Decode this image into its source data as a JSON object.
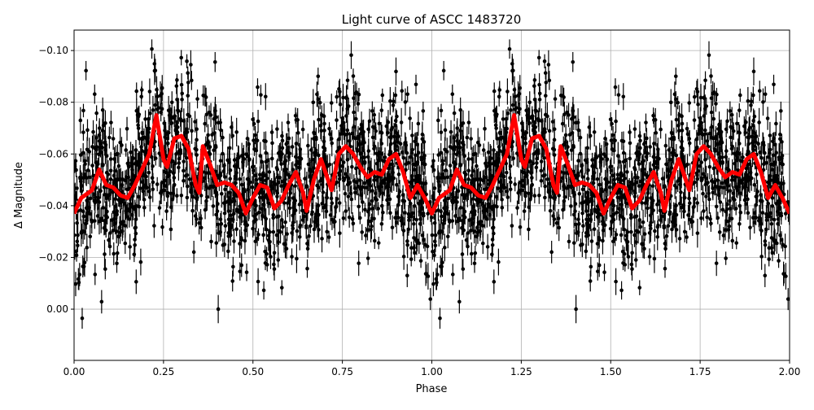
{
  "chart_data": {
    "type": "scatter",
    "title": "Light curve of ASCC 1483720",
    "xlabel": "Phase",
    "ylabel": "Δ Magnitude",
    "xlim": [
      0,
      2
    ],
    "ylim": [
      0.0198,
      -0.1079
    ],
    "y_inverted": true,
    "grid": true,
    "x_ticks": [
      "0.00",
      "0.25",
      "0.50",
      "0.75",
      "1.00",
      "1.25",
      "1.50",
      "1.75",
      "2.00"
    ],
    "y_ticks": [
      "−0.10",
      "−0.08",
      "−0.06",
      "−0.04",
      "−0.02",
      "0.00"
    ],
    "x_tick_values": [
      0,
      0.25,
      0.5,
      0.75,
      1,
      1.25,
      1.5,
      1.75,
      2
    ],
    "y_tick_values": [
      -0.1,
      -0.08,
      -0.06,
      -0.04,
      -0.02,
      0.0
    ],
    "points_style": {
      "color": "#000000",
      "marker": "dot with vertical error bars",
      "scatter_std": 0.018,
      "typical_error": 0.004
    },
    "model_curve": {
      "color": "#ff0000",
      "period_repeat": 1,
      "phase": [
        0.0,
        0.02,
        0.05,
        0.07,
        0.09,
        0.11,
        0.13,
        0.15,
        0.17,
        0.19,
        0.21,
        0.23,
        0.25,
        0.26,
        0.28,
        0.3,
        0.32,
        0.34,
        0.35,
        0.36,
        0.38,
        0.4,
        0.42,
        0.44,
        0.46,
        0.48,
        0.5,
        0.52,
        0.54,
        0.56,
        0.58,
        0.6,
        0.62,
        0.64,
        0.65,
        0.67,
        0.69,
        0.71,
        0.72,
        0.74,
        0.76,
        0.78,
        0.8,
        0.82,
        0.84,
        0.86,
        0.88,
        0.9,
        0.92,
        0.94,
        0.96,
        0.98,
        1.0
      ],
      "magnitude": [
        -0.037,
        -0.043,
        -0.046,
        -0.054,
        -0.048,
        -0.047,
        -0.044,
        -0.043,
        -0.048,
        -0.054,
        -0.06,
        -0.075,
        -0.058,
        -0.055,
        -0.066,
        -0.067,
        -0.062,
        -0.048,
        -0.045,
        -0.063,
        -0.056,
        -0.048,
        -0.049,
        -0.048,
        -0.045,
        -0.037,
        -0.043,
        -0.048,
        -0.047,
        -0.039,
        -0.042,
        -0.048,
        -0.053,
        -0.045,
        -0.038,
        -0.05,
        -0.058,
        -0.05,
        -0.046,
        -0.06,
        -0.063,
        -0.06,
        -0.055,
        -0.051,
        -0.053,
        -0.052,
        -0.058,
        -0.06,
        -0.053,
        -0.043,
        -0.048,
        -0.043,
        -0.037
      ]
    }
  }
}
